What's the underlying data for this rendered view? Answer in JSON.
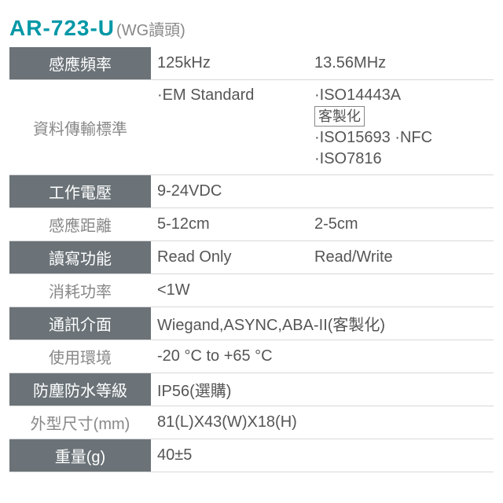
{
  "header": {
    "model": "AR-723-U",
    "subtitle": "(WG讀頭)"
  },
  "rows": {
    "freq": {
      "label": "感應頻率",
      "c1": "125kHz",
      "c2": "13.56MHz"
    },
    "std": {
      "label": "資料傳輸標準",
      "c1": "·EM Standard",
      "c2a": "·ISO14443A",
      "c2box": "客製化",
      "c2b": "·ISO15693 ·NFC",
      "c2c": "·ISO7816"
    },
    "volt": {
      "label": "工作電壓",
      "c1": "9-24VDC"
    },
    "dist": {
      "label": "感應距離",
      "c1": "5-12cm",
      "c2": "2-5cm"
    },
    "rw": {
      "label": "讀寫功能",
      "c1": "Read Only",
      "c2": "Read/Write"
    },
    "pow": {
      "label": "消耗功率",
      "c1": "<1W"
    },
    "comm": {
      "label": "通訊介面",
      "c1": "Wiegand,ASYNC,ABA-II(客製化)"
    },
    "env": {
      "label": "使用環境",
      "c1": "-20 °C to +65 °C"
    },
    "ip": {
      "label": "防塵防水等級",
      "c1": "IP56(選購)"
    },
    "dim": {
      "label": "外型尺寸(mm)",
      "c1": "81(L)X43(W)X18(H)"
    },
    "wt": {
      "label": "重量(g)",
      "c1": "40±5"
    }
  },
  "colors": {
    "accent": "#0097a7",
    "dark_bg": "#6b7378",
    "light_text": "#888888",
    "val_text": "#555555",
    "border": "#d8d8d8"
  }
}
